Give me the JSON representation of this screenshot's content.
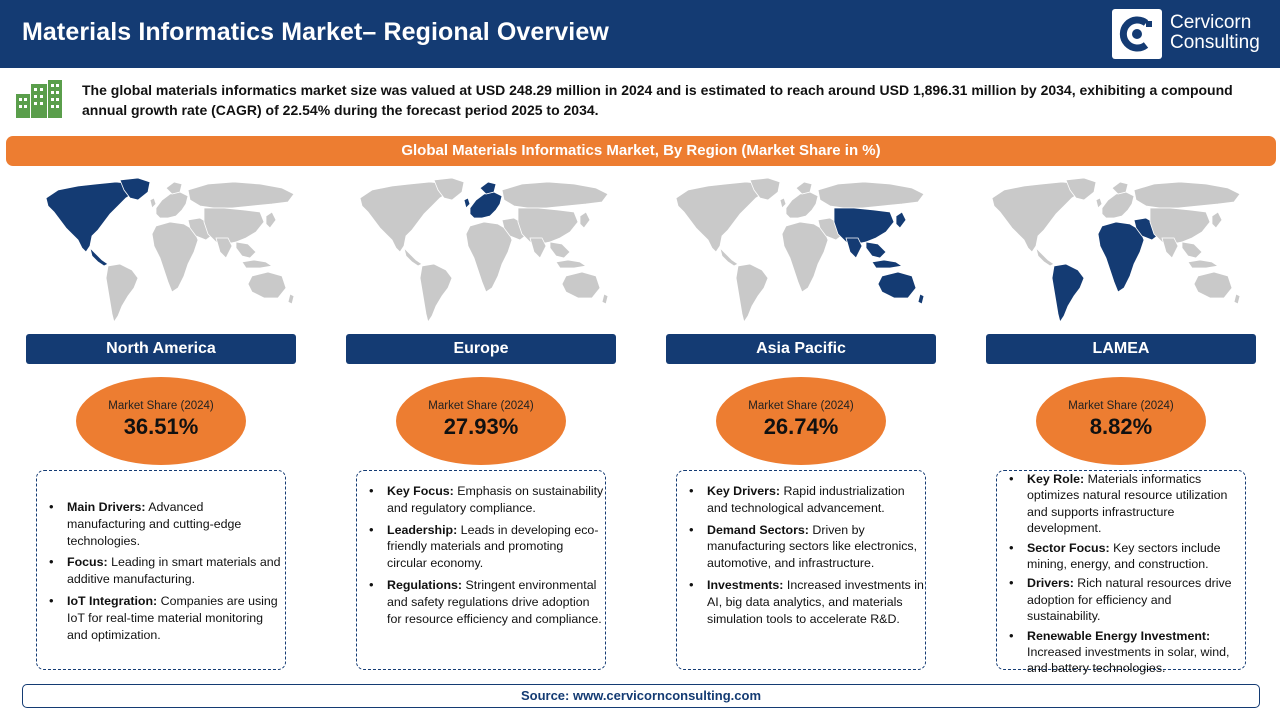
{
  "header": {
    "title": "Materials Informatics Market– Regional Overview",
    "logo_line1": "Cervicorn",
    "logo_line2": "Consulting"
  },
  "intro": "The global materials informatics market size was valued at USD 248.29 million in 2024 and is estimated to reach around USD 1,896.31 million by 2034, exhibiting a compound annual growth rate (CAGR) of 22.54% during the forecast period 2025 to 2034.",
  "banner": "Global Materials Informatics Market, By Region  (Market Share in %)",
  "colors": {
    "navy": "#143b73",
    "orange": "#ed7d31",
    "map_gray": "#c9c9c9",
    "icon_green": "#5a9e4b"
  },
  "regions": [
    {
      "name": "North America",
      "share_label": "Market Share (2024)",
      "share": "36.51%",
      "items": [
        {
          "k": "Main Drivers:",
          "v": " Advanced manufacturing and cutting-edge technologies."
        },
        {
          "k": "Focus:",
          "v": " Leading in smart materials and additive manufacturing."
        },
        {
          "k": "IoT Integration:",
          "v": " Companies are using IoT for real-time material monitoring and optimization."
        }
      ]
    },
    {
      "name": "Europe",
      "share_label": "Market Share (2024)",
      "share": "27.93%",
      "items": [
        {
          "k": "Key Focus:",
          "v": " Emphasis on sustainability and regulatory compliance."
        },
        {
          "k": "Leadership:",
          "v": " Leads in developing eco-friendly materials and promoting circular economy."
        },
        {
          "k": "Regulations:",
          "v": " Stringent environmental and safety regulations drive adoption for resource efficiency and compliance."
        }
      ]
    },
    {
      "name": "Asia Pacific",
      "share_label": "Market Share (2024)",
      "share": "26.74%",
      "items": [
        {
          "k": "Key Drivers:",
          "v": " Rapid industrialization and technological advancement."
        },
        {
          "k": "Demand Sectors:",
          "v": " Driven by manufacturing sectors like electronics, automotive, and infrastructure."
        },
        {
          "k": "Investments:",
          "v": " Increased investments in AI, big data analytics, and materials simulation tools to accelerate R&D."
        }
      ]
    },
    {
      "name": "LAMEA",
      "share_label": "Market Share (2024)",
      "share": "8.82%",
      "items": [
        {
          "k": "Key Role:",
          "v": " Materials informatics optimizes natural resource utilization and supports infrastructure development."
        },
        {
          "k": "Sector Focus:",
          "v": " Key sectors include mining, energy, and construction."
        },
        {
          "k": "Drivers:",
          "v": " Rich natural resources drive adoption for efficiency and sustainability."
        },
        {
          "k": "Renewable Energy Investment:",
          "v": " Increased investments in solar, wind, and battery technologies."
        }
      ]
    }
  ],
  "footer": "Source: www.cervicornconsulting.com"
}
